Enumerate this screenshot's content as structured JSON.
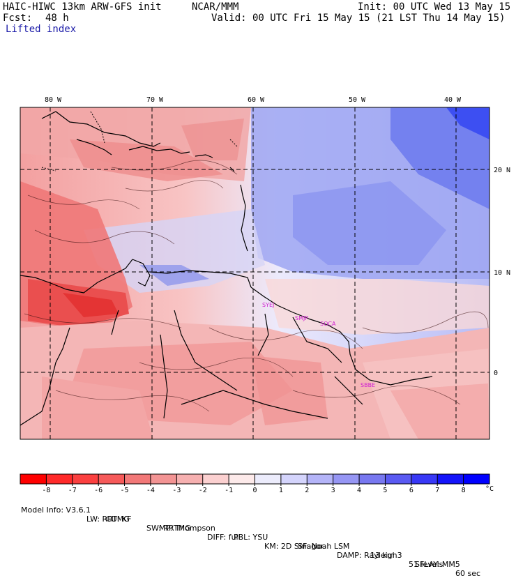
{
  "header": {
    "model": "HAIC-HIWC 13km ARW-GFS init",
    "org": "NCAR/MMM",
    "init": "Init: 00 UTC Wed 13 May 15",
    "fcst_label": "Fcst:",
    "fcst_value": "48 h",
    "valid": "Valid: 00 UTC Fri 15 May 15 (21 LST Thu 14 May 15)",
    "field": "Lifted index"
  },
  "map": {
    "lon_labels": [
      "80 W",
      "70 W",
      "60 W",
      "50 W",
      "40 W"
    ],
    "lat_labels": [
      "20 N",
      "10 N",
      "0"
    ],
    "stations": [
      "SYEJ",
      "SMJP",
      "SOCA",
      "SBBE"
    ]
  },
  "colorbar": {
    "unit": "°C",
    "ticks": [
      "-8",
      "-7",
      "-6",
      "-5",
      "-4",
      "-3",
      "-2",
      "-1",
      "0",
      "1",
      "2",
      "3",
      "4",
      "5",
      "6",
      "7",
      "8"
    ],
    "colors": [
      "#ff0000",
      "#ff2a2a",
      "#fb4040",
      "#f65a5a",
      "#f27878",
      "#f39494",
      "#f6b0b0",
      "#fbd0d0",
      "#fdeaea",
      "#ececfc",
      "#d4d4fc",
      "#b4b4f8",
      "#9696f4",
      "#7878f0",
      "#5a5af2",
      "#3838f6",
      "#1414fa",
      "#0000ff"
    ]
  },
  "footer": {
    "line1": [
      "Model Info: V3.6.1",
      "CU: KF",
      "MP: Thompson",
      "PBL: YSU",
      "SF: Noah LSM",
      "13 km",
      "51 levels",
      "60 sec"
    ],
    "line2": [
      "LW: RRTMG",
      "SW: RRTMG",
      "DIFF: full",
      "KM: 2D Smagor",
      "DAMP: Rayleigh3",
      "SFLAY: MM5"
    ]
  }
}
